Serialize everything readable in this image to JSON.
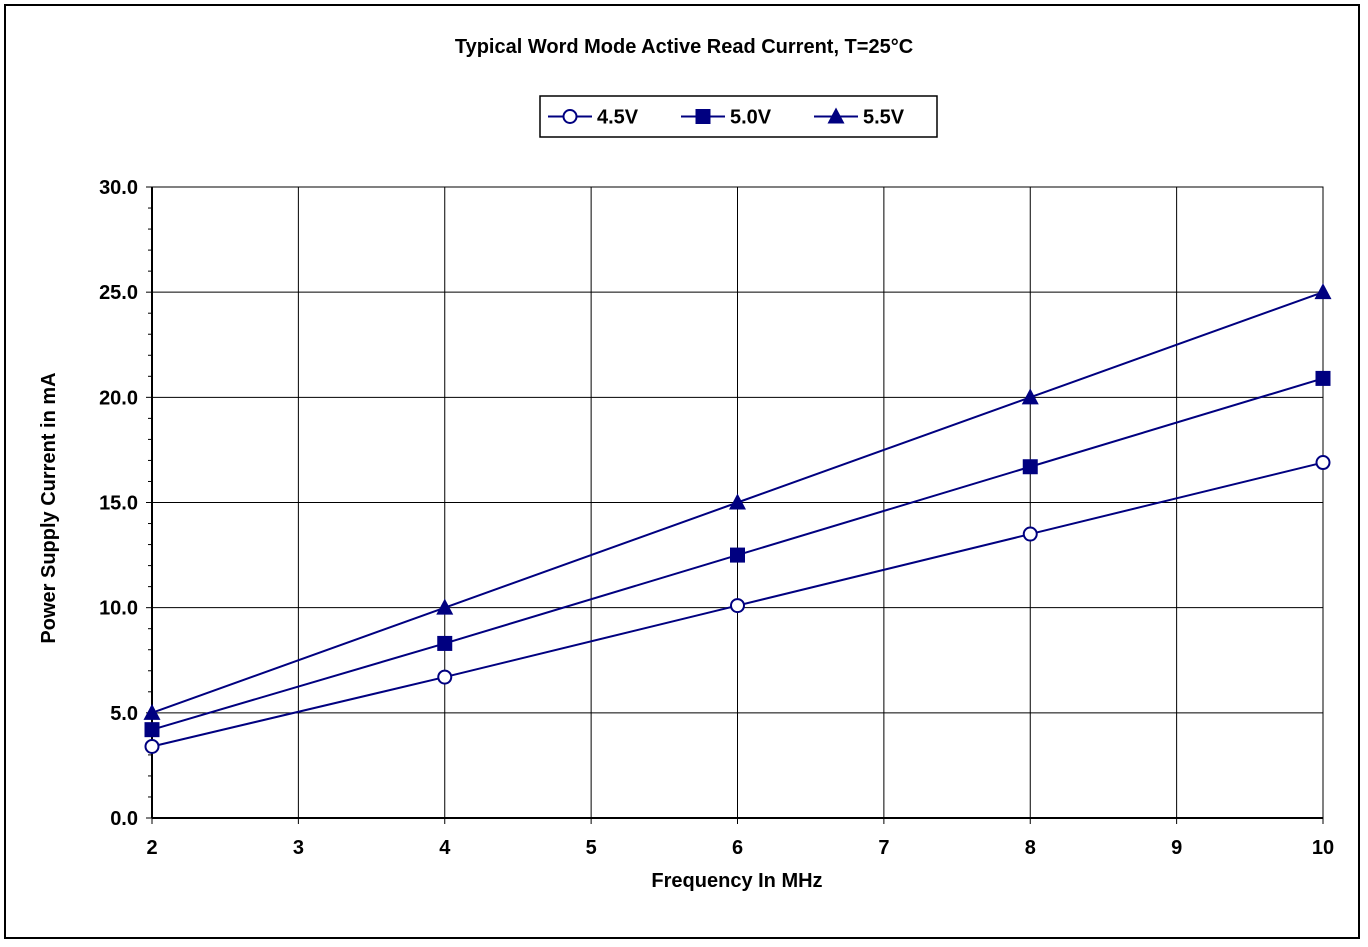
{
  "chart_data": {
    "type": "line",
    "title": "Typical Word Mode Active Read Current, T=25°C",
    "xlabel": "Frequency In MHz",
    "ylabel": "Power Supply Current in mA",
    "xlim": [
      2,
      10
    ],
    "ylim": [
      0,
      30
    ],
    "x_ticks": [
      "2",
      "3",
      "4",
      "5",
      "6",
      "7",
      "8",
      "9",
      "10"
    ],
    "y_ticks": [
      "0.0",
      "5.0",
      "10.0",
      "15.0",
      "20.0",
      "25.0",
      "30.0"
    ],
    "grid": true,
    "legend_position": "top-center",
    "line_color": "#000080",
    "series": [
      {
        "name": "4.5V",
        "marker": "open-circle",
        "x": [
          2,
          4,
          6,
          8,
          10
        ],
        "values": [
          3.4,
          6.7,
          10.1,
          13.5,
          16.9
        ]
      },
      {
        "name": "5.0V",
        "marker": "filled-square",
        "x": [
          2,
          4,
          6,
          8,
          10
        ],
        "values": [
          4.2,
          8.3,
          12.5,
          16.7,
          20.9
        ]
      },
      {
        "name": "5.5V",
        "marker": "filled-triangle",
        "x": [
          2,
          4,
          6,
          8,
          10
        ],
        "values": [
          5.0,
          10.0,
          15.0,
          20.0,
          25.0
        ]
      }
    ]
  }
}
